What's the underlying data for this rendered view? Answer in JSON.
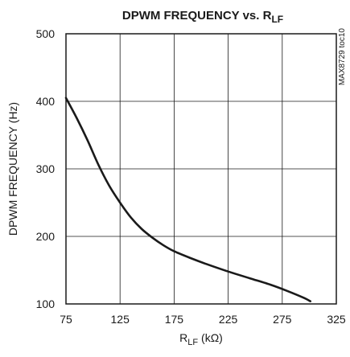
{
  "chart_data": {
    "type": "line",
    "title": "DPWM FREQUENCY vs. R",
    "title_sub": "LF",
    "xlabel": "R",
    "xlabel_sub": "LF",
    "xlabel_unit": " (kΩ)",
    "ylabel": "DPWM FREQUENCY (Hz)",
    "side_label": "MAX8729 toc10",
    "xlim": [
      75,
      325
    ],
    "ylim": [
      100,
      500
    ],
    "x_ticks": [
      "75",
      "125",
      "175",
      "225",
      "275",
      "325"
    ],
    "y_ticks": [
      "500",
      "400",
      "300",
      "200",
      "100"
    ],
    "grid": true,
    "line_color": "#1a1a1a",
    "series": [
      {
        "x": [
          75,
          85,
          95,
          105,
          115,
          125,
          135,
          145,
          155,
          165,
          175,
          190,
          205,
          225,
          245,
          265,
          280,
          295,
          301
        ],
        "values": [
          405,
          375,
          342,
          306,
          275,
          250,
          228,
          211,
          198,
          187,
          178,
          168,
          159,
          148,
          138,
          128,
          119,
          109,
          104
        ]
      }
    ]
  }
}
